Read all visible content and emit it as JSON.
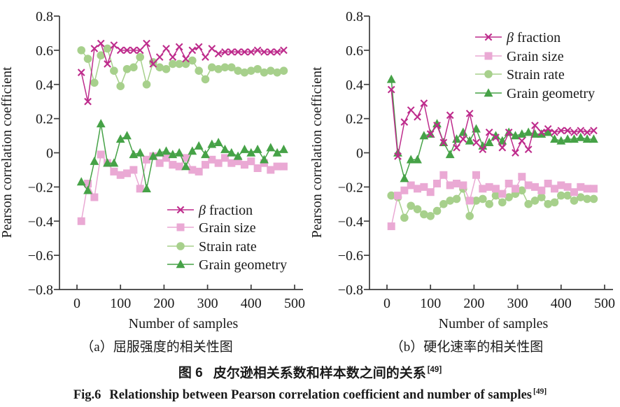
{
  "figure": {
    "caption_cn": {
      "fig_label": "图 6",
      "text": "皮尔逊相关系数和样本数之间的关系",
      "ref": "[49]"
    },
    "caption_en": {
      "fig_label": "Fig.6",
      "text": "Relationship between Pearson correlation coefficient and number of samples",
      "ref": "[49]"
    }
  },
  "colors": {
    "axis": "#3d3d3d",
    "text": "#1a1a1a",
    "beta_fraction": "#be2c8c",
    "grain_size": "#eaa9d4",
    "strain_rate": "#a7d08c",
    "grain_geometry": "#46a247"
  },
  "chart_data": [
    {
      "id": "a",
      "type": "line",
      "title": "（a）屈服强度的相关性图",
      "xlabel": "Number of samples",
      "ylabel": "Pearson correlation coefficient",
      "xlim": [
        0,
        500
      ],
      "ylim": [
        -0.8,
        0.8
      ],
      "grid": false,
      "legend_position": "bottom-right",
      "xticks": [
        0,
        100,
        200,
        300,
        400,
        500
      ],
      "yticks": [
        0.8,
        0.6,
        0.4,
        0.2,
        0,
        -0.2,
        -0.4,
        -0.6,
        -0.8
      ],
      "ytick_labels": [
        "0.8",
        "0.6",
        "0.4",
        "0.2",
        "0",
        "−0.2",
        "−0.4",
        "−0.6",
        "−0.8"
      ],
      "x": [
        10,
        25,
        40,
        55,
        70,
        85,
        100,
        115,
        130,
        145,
        160,
        175,
        190,
        205,
        220,
        235,
        250,
        265,
        280,
        295,
        310,
        325,
        340,
        355,
        370,
        385,
        400,
        415,
        430,
        445,
        460,
        475
      ],
      "series": [
        {
          "name": "β fraction",
          "marker": "x",
          "color": "#be2c8c",
          "values": [
            0.47,
            0.3,
            0.61,
            0.64,
            0.52,
            0.63,
            0.6,
            0.6,
            0.6,
            0.6,
            0.64,
            0.52,
            0.56,
            0.61,
            0.56,
            0.62,
            0.55,
            0.6,
            0.62,
            0.56,
            0.61,
            0.58,
            0.59,
            0.59,
            0.59,
            0.59,
            0.59,
            0.6,
            0.59,
            0.59,
            0.59,
            0.6
          ]
        },
        {
          "name": "Grain size",
          "marker": "square",
          "color": "#eaa9d4",
          "values": [
            -0.4,
            -0.18,
            -0.26,
            -0.01,
            -0.06,
            -0.11,
            -0.13,
            -0.12,
            -0.1,
            -0.21,
            -0.04,
            -0.02,
            -0.06,
            -0.03,
            -0.07,
            -0.08,
            -0.03,
            -0.1,
            -0.11,
            -0.07,
            -0.04,
            -0.06,
            -0.03,
            -0.06,
            -0.05,
            -0.07,
            -0.05,
            -0.09,
            -0.06,
            -0.1,
            -0.08,
            -0.08
          ]
        },
        {
          "name": "Strain rate",
          "marker": "circle",
          "color": "#a7d08c",
          "values": [
            0.6,
            0.55,
            0.41,
            0.57,
            0.61,
            0.48,
            0.39,
            0.49,
            0.5,
            0.56,
            0.4,
            0.53,
            0.5,
            0.49,
            0.52,
            0.52,
            0.52,
            0.54,
            0.48,
            0.43,
            0.5,
            0.49,
            0.5,
            0.5,
            0.48,
            0.47,
            0.48,
            0.49,
            0.47,
            0.48,
            0.47,
            0.48
          ]
        },
        {
          "name": "Grain geometry",
          "marker": "triangle",
          "color": "#46a247",
          "values": [
            -0.17,
            -0.22,
            -0.05,
            0.17,
            -0.06,
            -0.06,
            0.08,
            0.1,
            -0.01,
            0.0,
            -0.21,
            -0.02,
            0.0,
            0.01,
            -0.01,
            0.0,
            -0.08,
            0.01,
            0.04,
            -0.01,
            0.05,
            0.06,
            0.02,
            0.0,
            -0.02,
            0.02,
            0.0,
            0.02,
            -0.04,
            0.03,
            0.0,
            0.02
          ]
        }
      ]
    },
    {
      "id": "b",
      "type": "line",
      "title": "（b）硬化速率的相关性图",
      "xlabel": "Number of samples",
      "ylabel": "Pearson correlation coefficient",
      "xlim": [
        0,
        500
      ],
      "ylim": [
        -0.8,
        0.8
      ],
      "grid": false,
      "legend_position": "top-right",
      "xticks": [
        0,
        100,
        200,
        300,
        400,
        500
      ],
      "yticks": [
        0.8,
        0.6,
        0.4,
        0.2,
        0,
        -0.2,
        -0.4,
        -0.6,
        -0.8
      ],
      "ytick_labels": [
        "0.8",
        "0.6",
        "0.4",
        "0.2",
        "0",
        "−0.2",
        "−0.4",
        "−0.6",
        "−0.8"
      ],
      "x": [
        10,
        25,
        40,
        55,
        70,
        85,
        100,
        115,
        130,
        145,
        160,
        175,
        190,
        205,
        220,
        235,
        250,
        265,
        280,
        295,
        310,
        325,
        340,
        355,
        370,
        385,
        400,
        415,
        430,
        445,
        460,
        475
      ],
      "series": [
        {
          "name": "β fraction",
          "marker": "x",
          "color": "#be2c8c",
          "values": [
            0.37,
            -0.02,
            0.18,
            0.25,
            0.21,
            0.29,
            0.11,
            0.16,
            0.06,
            0.22,
            0.03,
            0.08,
            0.23,
            0.06,
            0.02,
            0.12,
            0.09,
            0.03,
            0.12,
            0.0,
            0.07,
            0.02,
            0.16,
            0.12,
            0.14,
            0.12,
            0.13,
            0.13,
            0.12,
            0.13,
            0.12,
            0.13
          ]
        },
        {
          "name": "Grain size",
          "marker": "square",
          "color": "#eaa9d4",
          "values": [
            -0.43,
            -0.25,
            -0.22,
            -0.19,
            -0.21,
            -0.2,
            -0.23,
            -0.18,
            -0.13,
            -0.19,
            -0.18,
            -0.19,
            -0.28,
            -0.13,
            -0.21,
            -0.2,
            -0.21,
            -0.24,
            -0.18,
            -0.21,
            -0.14,
            -0.19,
            -0.2,
            -0.22,
            -0.18,
            -0.21,
            -0.19,
            -0.2,
            -0.23,
            -0.2,
            -0.21,
            -0.21
          ]
        },
        {
          "name": "Strain rate",
          "marker": "circle",
          "color": "#a7d08c",
          "values": [
            -0.25,
            -0.26,
            -0.38,
            -0.31,
            -0.33,
            -0.36,
            -0.37,
            -0.34,
            -0.3,
            -0.28,
            -0.27,
            -0.21,
            -0.37,
            -0.28,
            -0.27,
            -0.3,
            -0.25,
            -0.29,
            -0.26,
            -0.24,
            -0.22,
            -0.3,
            -0.28,
            -0.26,
            -0.3,
            -0.29,
            -0.25,
            -0.25,
            -0.28,
            -0.26,
            -0.27,
            -0.27
          ]
        },
        {
          "name": "Grain geometry",
          "marker": "triangle",
          "color": "#46a247",
          "values": [
            0.43,
            0.0,
            -0.15,
            -0.04,
            -0.04,
            0.1,
            0.11,
            0.17,
            0.06,
            -0.01,
            0.08,
            0.12,
            0.07,
            0.14,
            0.04,
            0.06,
            0.1,
            0.07,
            0.12,
            0.1,
            0.11,
            0.12,
            0.11,
            0.11,
            0.12,
            0.08,
            0.07,
            0.08,
            0.08,
            0.09,
            0.08,
            0.08
          ]
        }
      ]
    }
  ]
}
